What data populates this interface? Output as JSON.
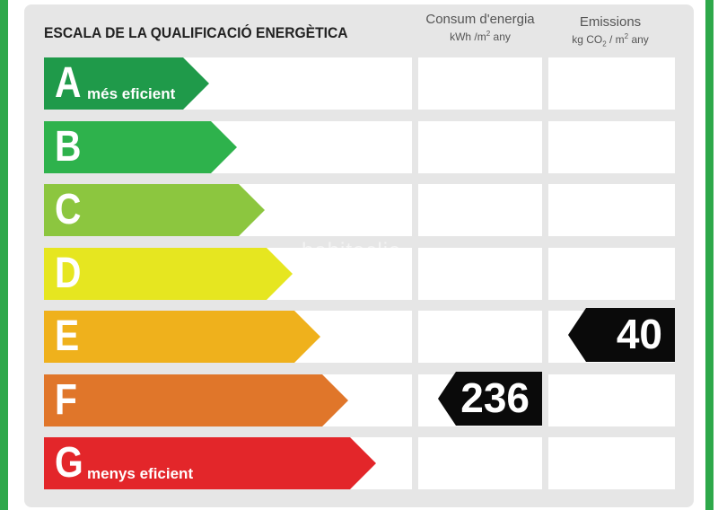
{
  "title": "ESCALA DE LA QUALIFICACIÓ ENERGÈTICA",
  "columns": {
    "energy": {
      "label": "Consum d'energia",
      "unit_a": "kWh /m",
      "unit_sup": "2",
      "unit_b": " any"
    },
    "emissions": {
      "label": "Emissions",
      "unit_a": "kg CO",
      "unit_sub": "2",
      "unit_b": " / m",
      "unit_sup": "2",
      "unit_c": " any"
    }
  },
  "ratings": [
    {
      "letter": "A",
      "description": "més eficient",
      "color": "#1f9a4a"
    },
    {
      "letter": "B",
      "description": "",
      "color": "#2eb24c"
    },
    {
      "letter": "C",
      "description": "",
      "color": "#8cc63f"
    },
    {
      "letter": "D",
      "description": "",
      "color": "#e6e620"
    },
    {
      "letter": "E",
      "description": "",
      "color": "#efb11c"
    },
    {
      "letter": "F",
      "description": "",
      "color": "#e0762a"
    },
    {
      "letter": "G",
      "description": "menys eficient",
      "color": "#e3262a"
    }
  ],
  "results": {
    "energy": {
      "rating": "F",
      "value": "236"
    },
    "emissions": {
      "rating": "E",
      "value": "40"
    }
  },
  "watermark": "habitaclia"
}
